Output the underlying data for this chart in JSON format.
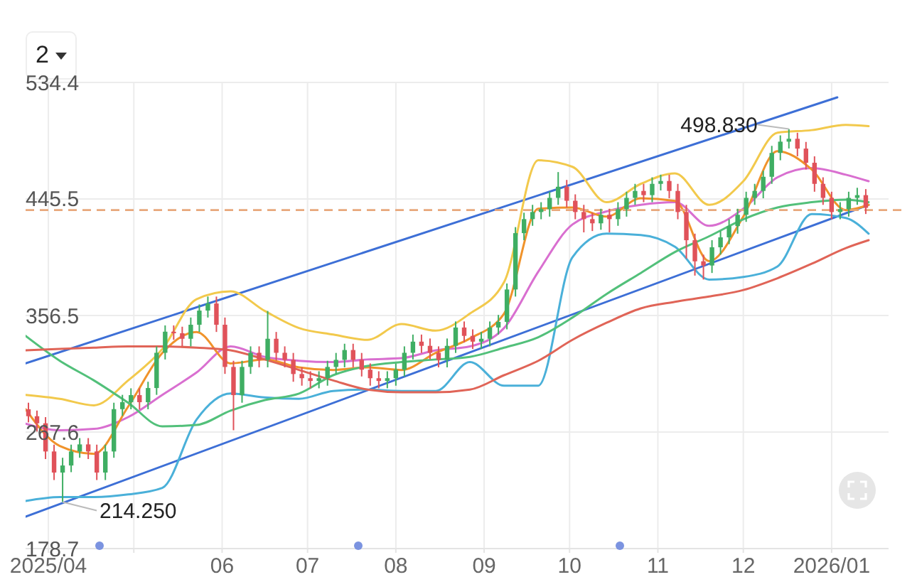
{
  "chart_data": {
    "type": "candlestick",
    "annotations": [
      "2",
      {
        "text": "498.830",
        "x": "2025-12-17",
        "y": 498.83
      },
      {
        "text": "214.250",
        "x": "2025-04-06",
        "y": 214.25
      }
    ],
    "xlim": [
      "2025-03-24",
      "2026-01-21"
    ],
    "xticks": [
      {
        "value": "2025-04-01",
        "label": "2025/04"
      },
      {
        "value": "2025-05-01",
        "label": null
      },
      {
        "value": "2025-06-01",
        "label": "06"
      },
      {
        "value": "2025-07-01",
        "label": "07"
      },
      {
        "value": "2025-08-01",
        "label": "08"
      },
      {
        "value": "2025-09-01",
        "label": "09"
      },
      {
        "value": "2025-10-01",
        "label": "10"
      },
      {
        "value": "2025-11-01",
        "label": "11"
      },
      {
        "value": "2025-12-01",
        "label": "12"
      },
      {
        "value": "2026-01-01",
        "label": "2026/01"
      }
    ],
    "ylim": [
      178.7,
      534.4
    ],
    "yticks": [
      178.7,
      267.6,
      356.5,
      445.5,
      534.4
    ],
    "grid": true,
    "ref_lines": [
      {
        "axis": "y",
        "value": 437,
        "color": "#e8a87c",
        "line_style": "dashed"
      }
    ],
    "x": [
      "2025-03-25",
      "2025-03-28",
      "2025-03-31",
      "2025-04-03",
      "2025-04-06",
      "2025-04-09",
      "2025-04-12",
      "2025-04-15",
      "2025-04-18",
      "2025-04-21",
      "2025-04-24",
      "2025-04-27",
      "2025-04-30",
      "2025-05-03",
      "2025-05-06",
      "2025-05-09",
      "2025-05-12",
      "2025-05-15",
      "2025-05-18",
      "2025-05-21",
      "2025-05-24",
      "2025-05-27",
      "2025-05-30",
      "2025-06-02",
      "2025-06-05",
      "2025-06-08",
      "2025-06-11",
      "2025-06-14",
      "2025-06-17",
      "2025-06-20",
      "2025-06-23",
      "2025-06-26",
      "2025-06-29",
      "2025-07-02",
      "2025-07-05",
      "2025-07-08",
      "2025-07-11",
      "2025-07-14",
      "2025-07-17",
      "2025-07-20",
      "2025-07-23",
      "2025-07-26",
      "2025-07-29",
      "2025-08-01",
      "2025-08-04",
      "2025-08-07",
      "2025-08-10",
      "2025-08-13",
      "2025-08-16",
      "2025-08-19",
      "2025-08-22",
      "2025-08-25",
      "2025-08-28",
      "2025-08-31",
      "2025-09-03",
      "2025-09-06",
      "2025-09-09",
      "2025-09-12",
      "2025-09-15",
      "2025-09-18",
      "2025-09-21",
      "2025-09-24",
      "2025-09-27",
      "2025-09-30",
      "2025-10-03",
      "2025-10-06",
      "2025-10-09",
      "2025-10-12",
      "2025-10-15",
      "2025-10-18",
      "2025-10-21",
      "2025-10-24",
      "2025-10-27",
      "2025-10-30",
      "2025-11-02",
      "2025-11-05",
      "2025-11-08",
      "2025-11-11",
      "2025-11-14",
      "2025-11-17",
      "2025-11-20",
      "2025-11-23",
      "2025-11-26",
      "2025-11-29",
      "2025-12-02",
      "2025-12-05",
      "2025-12-08",
      "2025-12-11",
      "2025-12-14",
      "2025-12-17",
      "2025-12-20",
      "2025-12-23",
      "2025-12-26",
      "2025-12-29",
      "2026-01-01",
      "2026-01-04",
      "2026-01-07",
      "2026-01-10",
      "2026-01-13"
    ],
    "ohlc": [
      [
        285,
        290,
        275,
        279.7
      ],
      [
        279.7,
        284,
        268,
        274.3
      ],
      [
        274.3,
        279,
        247,
        252.8
      ],
      [
        252.8,
        258,
        231,
        236.7
      ],
      [
        236.7,
        248,
        214.25,
        242.1
      ],
      [
        242.1,
        258,
        237,
        252.8
      ],
      [
        252.8,
        263,
        248,
        258.2
      ],
      [
        258.2,
        263,
        247,
        252.8
      ],
      [
        252.8,
        258,
        231,
        236.7
      ],
      [
        236.7,
        258,
        231,
        252.8
      ],
      [
        252.8,
        290,
        248,
        285.1
      ],
      [
        285.1,
        296,
        280,
        290.4
      ],
      [
        290.4,
        301,
        285,
        295.8
      ],
      [
        295.8,
        301,
        285,
        290.4
      ],
      [
        290.4,
        306,
        285,
        301.2
      ],
      [
        301.2,
        333,
        296,
        328.1
      ],
      [
        328.1,
        349,
        323,
        344.2
      ],
      [
        344.2,
        349,
        338,
        343
      ],
      [
        343,
        348,
        333,
        338.8
      ],
      [
        338.8,
        355,
        333,
        349.5
      ],
      [
        349.5,
        365,
        344,
        360.3
      ],
      [
        360.3,
        371,
        355,
        365.7
      ],
      [
        365.7,
        371,
        344,
        349.5
      ],
      [
        349.5,
        355,
        312,
        317.3
      ],
      [
        317.3,
        322,
        269,
        295.8
      ],
      [
        295.8,
        322,
        290,
        317.3
      ],
      [
        317.3,
        333,
        312,
        328.1
      ],
      [
        328.1,
        333,
        317,
        322.7
      ],
      [
        322.7,
        360,
        317,
        338.8
      ],
      [
        338.8,
        344,
        322,
        328.1
      ],
      [
        328.1,
        333,
        317,
        322.7
      ],
      [
        322.7,
        328,
        306,
        311.9
      ],
      [
        311.9,
        317,
        303,
        308.7
      ],
      [
        308.7,
        314,
        301,
        306.6
      ],
      [
        306.6,
        314,
        301,
        308.7
      ],
      [
        308.7,
        322,
        303,
        317.3
      ],
      [
        317.3,
        328,
        312,
        322.7
      ],
      [
        322.7,
        335,
        317,
        330.2
      ],
      [
        330.2,
        335,
        317,
        322.7
      ],
      [
        322.7,
        328,
        310,
        315.2
      ],
      [
        315.2,
        320,
        303,
        308.7
      ],
      [
        308.7,
        314,
        301,
        306.6
      ],
      [
        306.6,
        314,
        301,
        308.7
      ],
      [
        308.7,
        320,
        303,
        315.2
      ],
      [
        315.2,
        333,
        310,
        328.1
      ],
      [
        328.1,
        342,
        323,
        336.6
      ],
      [
        336.6,
        342,
        328,
        333.4
      ],
      [
        333.4,
        339,
        323,
        328.1
      ],
      [
        328.1,
        333,
        317,
        322.7
      ],
      [
        322.7,
        339,
        317,
        333.4
      ],
      [
        333.4,
        352,
        328,
        347.4
      ],
      [
        347.4,
        352,
        336,
        341
      ],
      [
        341,
        346,
        331,
        336.6
      ],
      [
        336.6,
        344,
        331,
        338.8
      ],
      [
        338.8,
        352,
        333,
        347.4
      ],
      [
        347.4,
        357,
        342,
        351.7
      ],
      [
        351.7,
        381,
        346,
        376.4
      ],
      [
        376.4,
        424,
        371,
        419.4
      ],
      [
        419.4,
        435,
        414,
        430.1
      ],
      [
        430.1,
        441,
        425,
        435.5
      ],
      [
        435.5,
        443,
        430,
        437.7
      ],
      [
        437.7,
        451,
        432,
        446.3
      ],
      [
        446.3,
        466,
        441,
        454.8
      ],
      [
        454.8,
        460,
        439,
        444.1
      ],
      [
        444.1,
        449,
        430,
        435.5
      ],
      [
        435.5,
        441,
        420,
        430.1
      ],
      [
        430.1,
        435,
        421,
        426.9
      ],
      [
        426.9,
        438,
        422,
        433.4
      ],
      [
        433.4,
        438,
        420,
        430.1
      ],
      [
        430.1,
        443,
        425,
        437.7
      ],
      [
        437.7,
        451,
        432,
        446.3
      ],
      [
        446.3,
        457,
        441,
        451.6
      ],
      [
        451.6,
        457,
        443,
        448.4
      ],
      [
        448.4,
        462,
        443,
        457
      ],
      [
        457,
        464,
        452,
        459.2
      ],
      [
        459.2,
        464,
        446,
        451.6
      ],
      [
        451.6,
        457,
        430,
        435.5
      ],
      [
        435.5,
        441,
        400,
        414
      ],
      [
        414,
        419,
        387,
        397.9
      ],
      [
        397.9,
        403,
        384,
        394.7
      ],
      [
        394.7,
        414,
        389,
        408.6
      ],
      [
        408.6,
        421,
        403,
        416.2
      ],
      [
        416.2,
        430,
        411,
        424.8
      ],
      [
        424.8,
        438,
        419,
        433.4
      ],
      [
        433.4,
        451,
        428,
        446.3
      ],
      [
        446.3,
        457,
        441,
        451.6
      ],
      [
        451.6,
        467,
        446,
        462.4
      ],
      [
        462.4,
        486,
        457,
        480.6
      ],
      [
        480.6,
        494,
        475,
        489.2
      ],
      [
        489.2,
        498.83,
        484,
        491.4
      ],
      [
        491.4,
        496,
        478,
        483.9
      ],
      [
        483.9,
        489,
        468,
        473.1
      ],
      [
        473.1,
        478,
        451,
        457
      ],
      [
        457,
        462,
        441,
        446.3
      ],
      [
        446.3,
        451,
        430,
        435.5
      ],
      [
        435.5,
        443,
        430,
        437.7
      ],
      [
        437.7,
        451,
        432,
        446.3
      ],
      [
        446.3,
        454,
        441,
        448.4
      ],
      [
        448.4,
        453,
        434,
        438.7
      ]
    ],
    "series": [
      {
        "type": "line",
        "color": "#3d6fd6",
        "x": [
          "2025-03-24",
          "2026-01-03"
        ],
        "values": [
          320,
          523
        ]
      },
      {
        "type": "line",
        "color": "#3d6fd6",
        "x": [
          "2025-03-24",
          "2026-01-14"
        ],
        "values": [
          203,
          441
        ]
      },
      {
        "type": "line",
        "color": "#f2c94c",
        "x": [
          "2025-03-24",
          "2025-04-05",
          "2025-04-17",
          "2025-04-29",
          "2025-05-11",
          "2025-05-23",
          "2025-06-04",
          "2025-06-16",
          "2025-06-28",
          "2025-07-10",
          "2025-07-22",
          "2025-08-03",
          "2025-08-15",
          "2025-08-27",
          "2025-09-08",
          "2025-09-20",
          "2025-10-02",
          "2025-10-14",
          "2025-10-26",
          "2025-11-07",
          "2025-11-19",
          "2025-12-01",
          "2025-12-13",
          "2025-12-25",
          "2026-01-06",
          "2026-01-14"
        ],
        "values": [
          296,
          293,
          288,
          307,
          331,
          369,
          375,
          360,
          347,
          342,
          338,
          350,
          345,
          358,
          382,
          475,
          470,
          443,
          457,
          465,
          441,
          459,
          496,
          498,
          502,
          501
        ]
      },
      {
        "type": "line",
        "color": "#4ab0d9",
        "x": [
          "2025-03-24",
          "2025-04-05",
          "2025-04-17",
          "2025-04-29",
          "2025-05-11",
          "2025-05-23",
          "2025-06-04",
          "2025-06-16",
          "2025-06-28",
          "2025-07-10",
          "2025-07-22",
          "2025-08-03",
          "2025-08-15",
          "2025-08-27",
          "2025-09-08",
          "2025-09-20",
          "2025-10-02",
          "2025-10-14",
          "2025-10-26",
          "2025-11-07",
          "2025-11-19",
          "2025-12-01",
          "2025-12-13",
          "2025-12-25",
          "2026-01-06",
          "2026-01-14"
        ],
        "values": [
          215,
          218,
          218,
          220,
          225,
          277,
          297,
          294,
          293,
          299,
          300,
          299,
          299,
          321,
          303,
          303,
          401,
          419,
          418,
          409,
          384,
          386,
          394,
          434,
          431,
          419
        ]
      },
      {
        "type": "line",
        "color": "#d96fd0",
        "x": [
          "2025-03-24",
          "2025-04-05",
          "2025-04-17",
          "2025-04-29",
          "2025-05-11",
          "2025-05-23",
          "2025-06-04",
          "2025-06-16",
          "2025-06-28",
          "2025-07-10",
          "2025-07-22",
          "2025-08-03",
          "2025-08-15",
          "2025-08-27",
          "2025-09-08",
          "2025-09-20",
          "2025-10-02",
          "2025-10-14",
          "2025-10-26",
          "2025-11-07",
          "2025-11-19",
          "2025-12-01",
          "2025-12-13",
          "2025-12-25",
          "2026-01-06",
          "2026-01-14"
        ],
        "values": [
          274,
          269,
          270,
          279,
          296,
          313,
          333,
          325,
          322,
          321,
          323,
          324,
          330,
          333,
          347,
          390,
          426,
          436,
          441,
          443,
          425,
          438,
          462,
          469,
          464,
          459
        ]
      },
      {
        "type": "line",
        "color": "#f0932b",
        "x": [
          "2025-03-24",
          "2025-04-05",
          "2025-04-17",
          "2025-04-29",
          "2025-05-11",
          "2025-05-23",
          "2025-06-04",
          "2025-06-16",
          "2025-06-28",
          "2025-07-10",
          "2025-07-22",
          "2025-08-03",
          "2025-08-15",
          "2025-08-27",
          "2025-09-08",
          "2025-09-20",
          "2025-10-02",
          "2025-10-14",
          "2025-10-26",
          "2025-11-07",
          "2025-11-19",
          "2025-12-01",
          "2025-12-13",
          "2025-12-25",
          "2026-01-06",
          "2026-01-14"
        ],
        "values": [
          285,
          257,
          251,
          287,
          328,
          344,
          320,
          323,
          317,
          315,
          317,
          315,
          328,
          339,
          358,
          438,
          439,
          432,
          446,
          444,
          398,
          432,
          482,
          468,
          437,
          441
        ]
      },
      {
        "type": "line",
        "color": "#52c07a",
        "x": [
          "2025-03-24",
          "2025-04-05",
          "2025-04-17",
          "2025-04-29",
          "2025-05-11",
          "2025-05-23",
          "2025-06-04",
          "2025-06-16",
          "2025-06-28",
          "2025-07-10",
          "2025-07-22",
          "2025-08-03",
          "2025-08-15",
          "2025-08-27",
          "2025-09-08",
          "2025-09-20",
          "2025-10-02",
          "2025-10-14",
          "2025-10-26",
          "2025-11-07",
          "2025-11-19",
          "2025-12-01",
          "2025-12-13",
          "2025-12-25",
          "2026-01-06",
          "2026-01-14"
        ],
        "values": [
          341,
          322,
          307,
          290,
          272,
          273,
          284,
          292,
          297,
          311,
          318,
          321,
          323,
          325,
          332,
          340,
          355,
          373,
          389,
          405,
          417,
          430,
          439,
          443,
          445,
          443
        ]
      },
      {
        "type": "line",
        "color": "#e06457",
        "x": [
          "2025-03-24",
          "2025-04-05",
          "2025-04-17",
          "2025-04-29",
          "2025-05-11",
          "2025-05-23",
          "2025-06-04",
          "2025-06-16",
          "2025-06-28",
          "2025-07-10",
          "2025-07-22",
          "2025-08-03",
          "2025-08-15",
          "2025-08-27",
          "2025-09-08",
          "2025-09-20",
          "2025-10-02",
          "2025-10-14",
          "2025-10-26",
          "2025-11-07",
          "2025-11-19",
          "2025-12-01",
          "2025-12-13",
          "2025-12-25",
          "2026-01-06",
          "2026-01-14"
        ],
        "values": [
          330,
          331,
          332,
          333,
          333,
          332,
          330,
          323,
          315,
          307,
          300,
          298,
          298,
          300,
          311,
          322,
          338,
          351,
          362,
          367,
          371,
          376,
          385,
          396,
          408,
          414
        ]
      }
    ]
  }
}
